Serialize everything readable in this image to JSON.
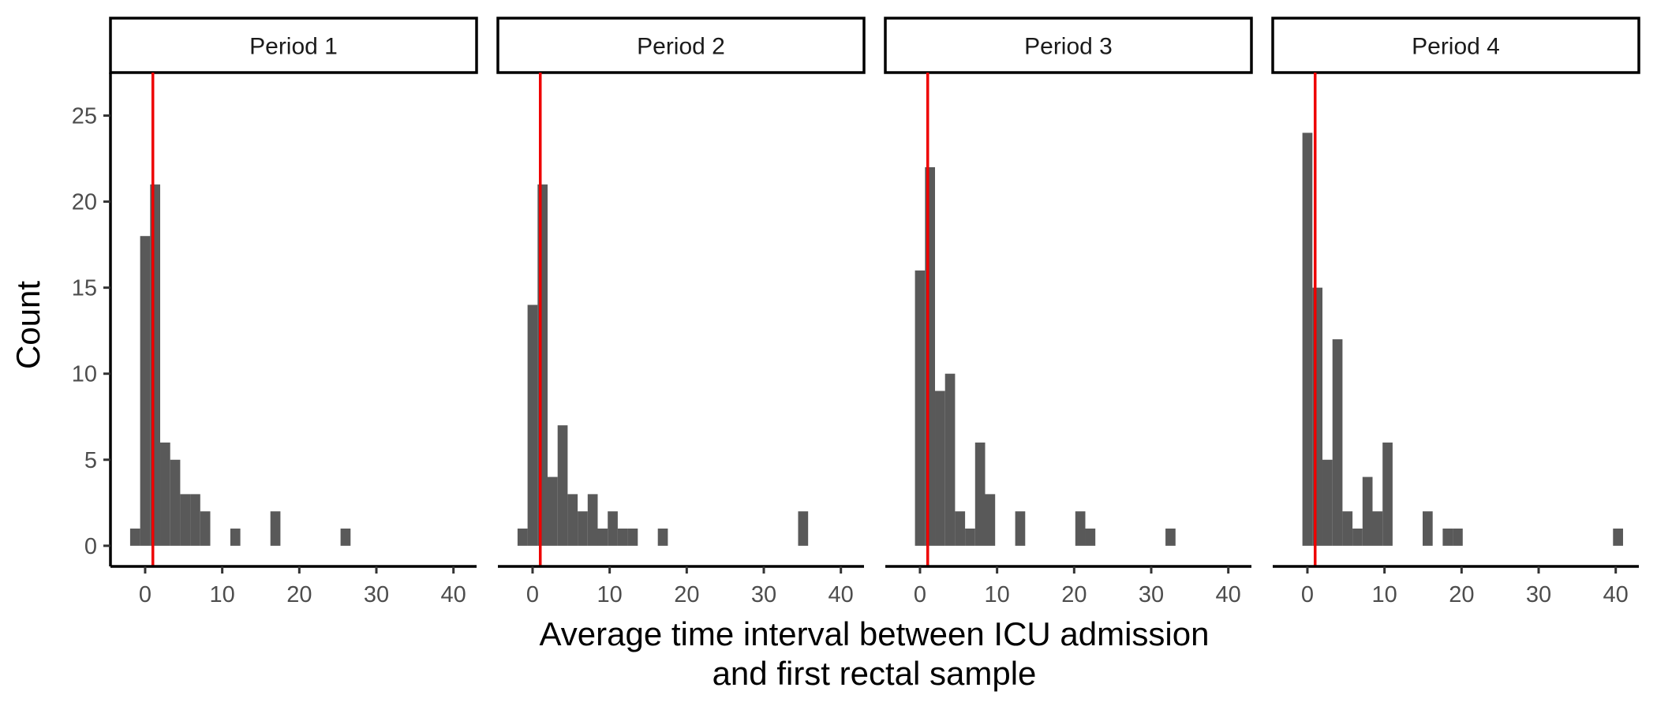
{
  "chart_data": {
    "type": "histogram",
    "facet_label": "Period",
    "xlabel_lines": [
      "Average time interval between ICU admission",
      "and first rectal sample"
    ],
    "ylabel": "Count",
    "xlim": [
      -4.5,
      43
    ],
    "ylim": [
      -1.2,
      27.5
    ],
    "x_ticks": [
      0,
      10,
      20,
      30,
      40
    ],
    "y_ticks": [
      0,
      5,
      10,
      15,
      20,
      25
    ],
    "bin_width": 1.3,
    "bar_color": "#595959",
    "reference_line": {
      "x": 1,
      "color": "#ee0000"
    },
    "panels": [
      {
        "label": "Period 1",
        "bins": [
          {
            "x": -1.3,
            "count": 1
          },
          {
            "x": 0,
            "count": 18
          },
          {
            "x": 1.3,
            "count": 21
          },
          {
            "x": 2.6,
            "count": 6
          },
          {
            "x": 3.9,
            "count": 5
          },
          {
            "x": 5.2,
            "count": 3
          },
          {
            "x": 6.5,
            "count": 3
          },
          {
            "x": 7.8,
            "count": 2
          },
          {
            "x": 11.7,
            "count": 1
          },
          {
            "x": 16.9,
            "count": 2
          },
          {
            "x": 26.0,
            "count": 1
          }
        ]
      },
      {
        "label": "Period 2",
        "bins": [
          {
            "x": -1.3,
            "count": 1
          },
          {
            "x": 0,
            "count": 14
          },
          {
            "x": 1.3,
            "count": 21
          },
          {
            "x": 2.6,
            "count": 4
          },
          {
            "x": 3.9,
            "count": 7
          },
          {
            "x": 5.2,
            "count": 3
          },
          {
            "x": 6.5,
            "count": 2
          },
          {
            "x": 7.8,
            "count": 3
          },
          {
            "x": 9.1,
            "count": 1
          },
          {
            "x": 10.4,
            "count": 2
          },
          {
            "x": 11.7,
            "count": 1
          },
          {
            "x": 13.0,
            "count": 1
          },
          {
            "x": 16.9,
            "count": 1
          },
          {
            "x": 35.1,
            "count": 2
          }
        ]
      },
      {
        "label": "Period 3",
        "bins": [
          {
            "x": 0,
            "count": 16
          },
          {
            "x": 1.3,
            "count": 22
          },
          {
            "x": 2.6,
            "count": 9
          },
          {
            "x": 3.9,
            "count": 10
          },
          {
            "x": 5.2,
            "count": 2
          },
          {
            "x": 6.5,
            "count": 1
          },
          {
            "x": 7.8,
            "count": 6
          },
          {
            "x": 9.1,
            "count": 3
          },
          {
            "x": 13.0,
            "count": 2
          },
          {
            "x": 20.8,
            "count": 2
          },
          {
            "x": 22.1,
            "count": 1
          },
          {
            "x": 32.5,
            "count": 1
          }
        ]
      },
      {
        "label": "Period 4",
        "bins": [
          {
            "x": 0,
            "count": 24
          },
          {
            "x": 1.3,
            "count": 15
          },
          {
            "x": 2.6,
            "count": 5
          },
          {
            "x": 3.9,
            "count": 12
          },
          {
            "x": 5.2,
            "count": 2
          },
          {
            "x": 6.5,
            "count": 1
          },
          {
            "x": 7.8,
            "count": 4
          },
          {
            "x": 9.1,
            "count": 2
          },
          {
            "x": 10.4,
            "count": 6
          },
          {
            "x": 15.6,
            "count": 2
          },
          {
            "x": 18.2,
            "count": 1
          },
          {
            "x": 19.5,
            "count": 1
          },
          {
            "x": 40.3,
            "count": 1
          }
        ]
      }
    ]
  }
}
